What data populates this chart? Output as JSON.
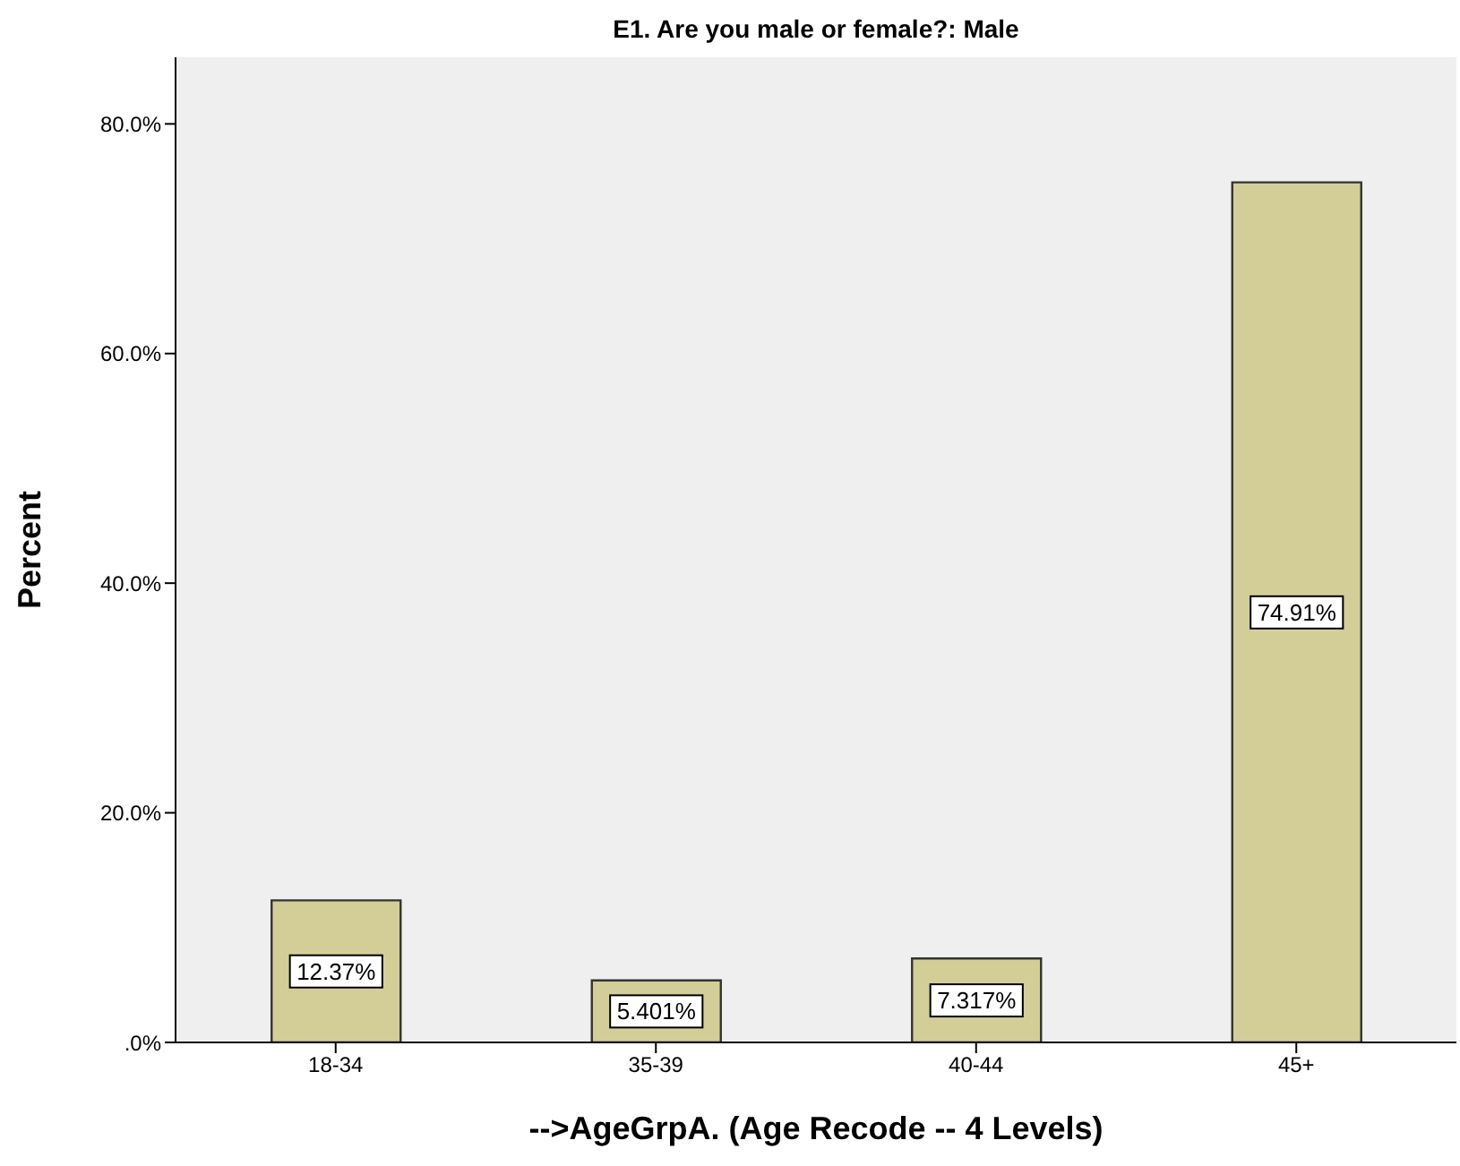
{
  "chart_data": {
    "type": "bar",
    "title": "E1. Are you male or female?: Male",
    "xlabel": "-->AgeGrpA. (Age Recode -- 4 Levels)",
    "ylabel": "Percent",
    "categories": [
      "18-34",
      "35-39",
      "40-44",
      "45+"
    ],
    "values": [
      12.37,
      5.401,
      7.317,
      74.91
    ],
    "value_labels": [
      "12.37%",
      "5.401%",
      "7.317%",
      "74.91%"
    ],
    "color": "#d3ce97",
    "ylim": [
      0,
      85.8
    ],
    "yticks": [
      {
        "value": 0,
        "label": ".0%"
      },
      {
        "value": 20,
        "label": "20.0%"
      },
      {
        "value": 40,
        "label": "40.0%"
      },
      {
        "value": 60,
        "label": "60.0%"
      },
      {
        "value": 80,
        "label": "80.0%"
      }
    ],
    "grid": false
  }
}
